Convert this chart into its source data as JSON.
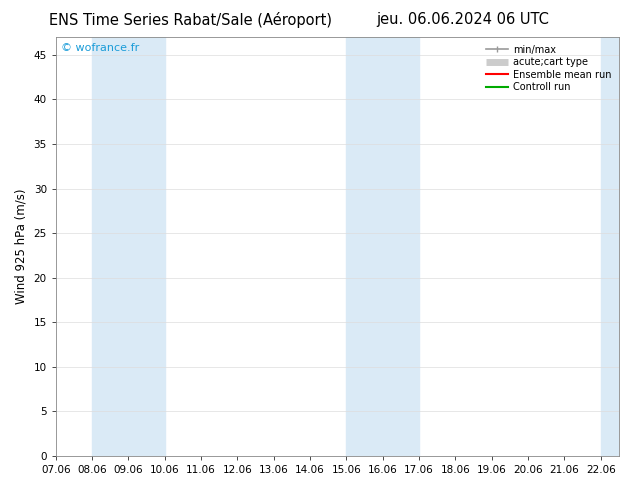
{
  "title_left": "ENS Time Series Rabat/Sale (Aéroport)",
  "title_right": "jeu. 06.06.2024 06 UTC",
  "ylabel": "Wind 925 hPa (m/s)",
  "watermark": "© wofrance.fr",
  "xlim_start": 7.0,
  "xlim_end": 22.5,
  "ylim_bottom": 0,
  "ylim_top": 47,
  "yticks": [
    0,
    5,
    10,
    15,
    20,
    25,
    30,
    35,
    40,
    45
  ],
  "xtick_labels": [
    "07.06",
    "08.06",
    "09.06",
    "10.06",
    "11.06",
    "12.06",
    "13.06",
    "14.06",
    "15.06",
    "16.06",
    "17.06",
    "18.06",
    "19.06",
    "20.06",
    "21.06",
    "22.06"
  ],
  "xtick_positions": [
    7.0,
    8.0,
    9.0,
    10.0,
    11.0,
    12.0,
    13.0,
    14.0,
    15.0,
    16.0,
    17.0,
    18.0,
    19.0,
    20.0,
    21.0,
    22.0
  ],
  "shaded_bands": [
    {
      "x_start": 8.0,
      "x_end": 10.0,
      "color": "#daeaf6"
    },
    {
      "x_start": 15.0,
      "x_end": 17.0,
      "color": "#daeaf6"
    }
  ],
  "right_edge_band": {
    "x_start": 22.0,
    "x_end": 22.5,
    "color": "#daeaf6"
  },
  "legend_entries": [
    {
      "label": "min/max",
      "color": "#999999",
      "lw": 1.2,
      "style": "line_with_caps"
    },
    {
      "label": "acute;cart type",
      "color": "#cccccc",
      "lw": 5,
      "style": "thick"
    },
    {
      "label": "Ensemble mean run",
      "color": "#ff0000",
      "lw": 1.5,
      "style": "line"
    },
    {
      "label": "Controll run",
      "color": "#00aa00",
      "lw": 1.5,
      "style": "line"
    }
  ],
  "bg_color": "#ffffff",
  "plot_bg_color": "#ffffff",
  "grid_color": "#dddddd",
  "title_fontsize": 10.5,
  "tick_fontsize": 7.5,
  "ylabel_fontsize": 8.5,
  "watermark_color": "#1a9cd8",
  "spine_color": "#888888"
}
